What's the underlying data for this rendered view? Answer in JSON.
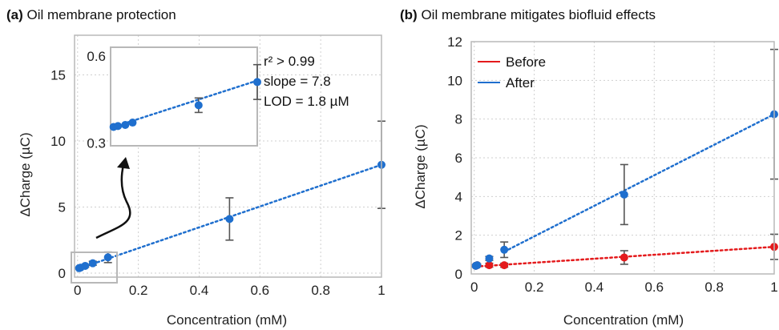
{
  "chart_data": [
    {
      "type": "scatter",
      "panel_label": "(a)",
      "title": "Oil membrane protection",
      "xlabel": "Concentration (mM)",
      "ylabel": "ΔCharge (µC)",
      "xlim": [
        -0.01,
        1.0
      ],
      "ylim": [
        -0.3,
        18
      ],
      "xticks": [
        0,
        0.2,
        0.4,
        0.6,
        0.8,
        1
      ],
      "xtick_labels": [
        "0",
        "0.2",
        "0.4",
        "0.6",
        "0.8",
        "1"
      ],
      "yticks": [
        0,
        5,
        10,
        15
      ],
      "ytick_labels": [
        "0",
        "5",
        "10",
        "15"
      ],
      "grid": true,
      "series": [
        {
          "color": "#1f6fce",
          "x": [
            0.005,
            0.01,
            0.025,
            0.05,
            0.1,
            0.5,
            1.0
          ],
          "y": [
            0.38,
            0.42,
            0.55,
            0.75,
            1.2,
            4.1,
            8.2
          ],
          "err": [
            0.05,
            0.05,
            0.1,
            0.15,
            0.4,
            1.6,
            3.3
          ],
          "fit": {
            "x": [
              0.005,
              1.0
            ],
            "y": [
              0.35,
              8.2
            ]
          }
        }
      ],
      "inset": {
        "xlim": [
          0,
          0.1
        ],
        "ylim": [
          0.29,
          0.63
        ],
        "yticks": [
          0.3,
          0.6
        ],
        "ytick_labels": [
          "0.3",
          "0.6"
        ],
        "series": [
          {
            "color": "#1f6fce",
            "x": [
              0.002,
              0.005,
              0.01,
              0.015,
              0.06,
              0.1
            ],
            "y": [
              0.355,
              0.358,
              0.362,
              0.37,
              0.43,
              0.51
            ],
            "err": [
              0,
              0,
              0,
              0,
              0.025,
              0.06
            ],
            "fit": {
              "x": [
                0.002,
                0.1
              ],
              "y": [
                0.355,
                0.515
              ]
            }
          }
        ]
      },
      "annotations": [
        "r² > 0.99",
        "slope = 7.8",
        "LOD = 1.8 µM"
      ]
    },
    {
      "type": "scatter",
      "panel_label": "(b)",
      "title": "Oil membrane mitigates biofluid effects",
      "xlabel": "Concentration (mM)",
      "ylabel": "ΔCharge (µC)",
      "xlim": [
        -0.01,
        1.0
      ],
      "ylim": [
        0,
        12
      ],
      "xticks": [
        0,
        0.2,
        0.4,
        0.6,
        0.8,
        1
      ],
      "xtick_labels": [
        "0",
        "0.2",
        "0.4",
        "0.6",
        "0.8",
        "1"
      ],
      "yticks": [
        0,
        2,
        4,
        6,
        8,
        10,
        12
      ],
      "ytick_labels": [
        "0",
        "2",
        "4",
        "6",
        "8",
        "10",
        "12"
      ],
      "grid": true,
      "legend": "top-left",
      "series": [
        {
          "name": "Before",
          "color": "#e41a1c",
          "x": [
            0.005,
            0.01,
            0.05,
            0.1,
            0.5,
            1.0
          ],
          "y": [
            0.42,
            0.45,
            0.45,
            0.45,
            0.85,
            1.4
          ],
          "err": [
            0.05,
            0.05,
            0.1,
            0.1,
            0.35,
            0.65
          ],
          "fit": {
            "x": [
              0.005,
              1.0
            ],
            "y": [
              0.38,
              1.4
            ]
          }
        },
        {
          "name": "After",
          "color": "#1f6fce",
          "x": [
            0.005,
            0.01,
            0.05,
            0.1,
            0.5,
            1.0
          ],
          "y": [
            0.42,
            0.45,
            0.8,
            1.25,
            4.1,
            8.25
          ],
          "err": [
            0.05,
            0.05,
            0.1,
            0.4,
            1.55,
            3.35
          ],
          "fit": {
            "x": [
              0.1,
              1.0
            ],
            "y": [
              1.15,
              8.25
            ]
          }
        }
      ]
    }
  ]
}
